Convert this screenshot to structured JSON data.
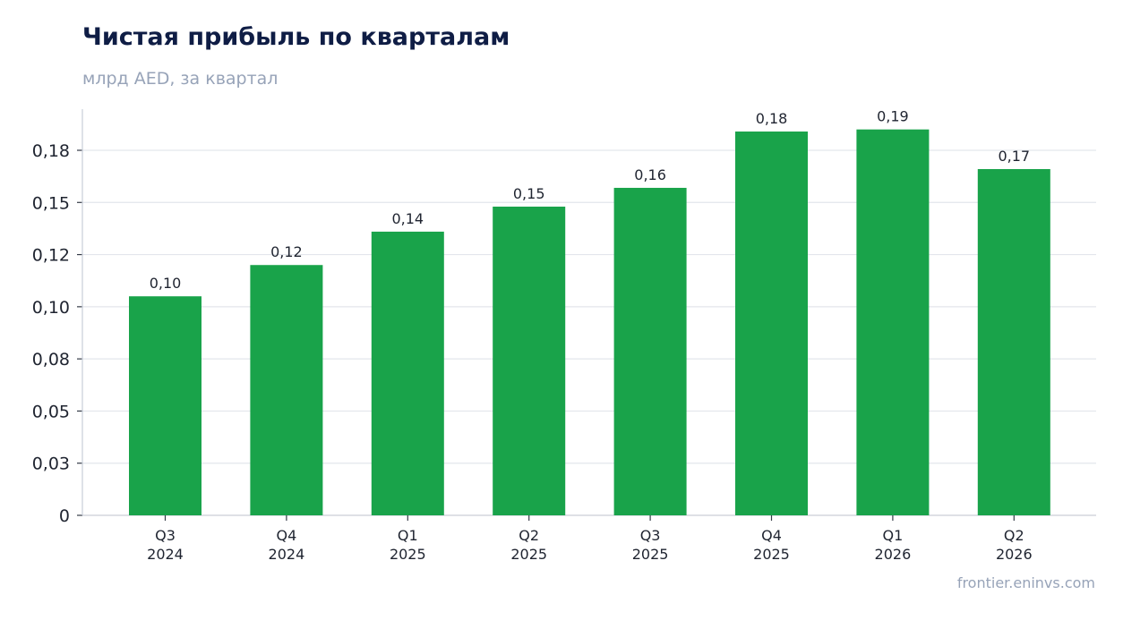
{
  "title": "Чистая прибыль по кварталам",
  "subtitle": "млрд AED, за квартал",
  "source": "frontier.eninvs.com",
  "colors": {
    "bar": "#19a34a",
    "title": "#0f1d45",
    "muted": "#97a3b8",
    "grid": "#e3e6ec",
    "axis": "#c9ced8"
  },
  "chart_data": {
    "type": "bar",
    "categories": [
      [
        "Q3",
        "2024"
      ],
      [
        "Q4",
        "2024"
      ],
      [
        "Q1",
        "2025"
      ],
      [
        "Q2",
        "2025"
      ],
      [
        "Q3",
        "2025"
      ],
      [
        "Q4",
        "2025"
      ],
      [
        "Q1",
        "2026"
      ],
      [
        "Q2",
        "2026"
      ]
    ],
    "values": [
      0.105,
      0.12,
      0.136,
      0.148,
      0.157,
      0.184,
      0.185,
      0.166
    ],
    "data_labels": [
      "0,10",
      "0,12",
      "0,14",
      "0,15",
      "0,16",
      "0,18",
      "0,19",
      "0,17"
    ],
    "yticks": [
      0,
      0.025,
      0.05,
      0.075,
      0.1,
      0.125,
      0.15,
      0.175
    ],
    "ytick_labels": [
      "0",
      "0,03",
      "0,05",
      "0,08",
      "0,10",
      "0,12",
      "0,15",
      "0,18"
    ],
    "ylim": [
      0,
      0.195
    ],
    "grid": true,
    "legend": "none",
    "xlabel": "",
    "ylabel": ""
  }
}
